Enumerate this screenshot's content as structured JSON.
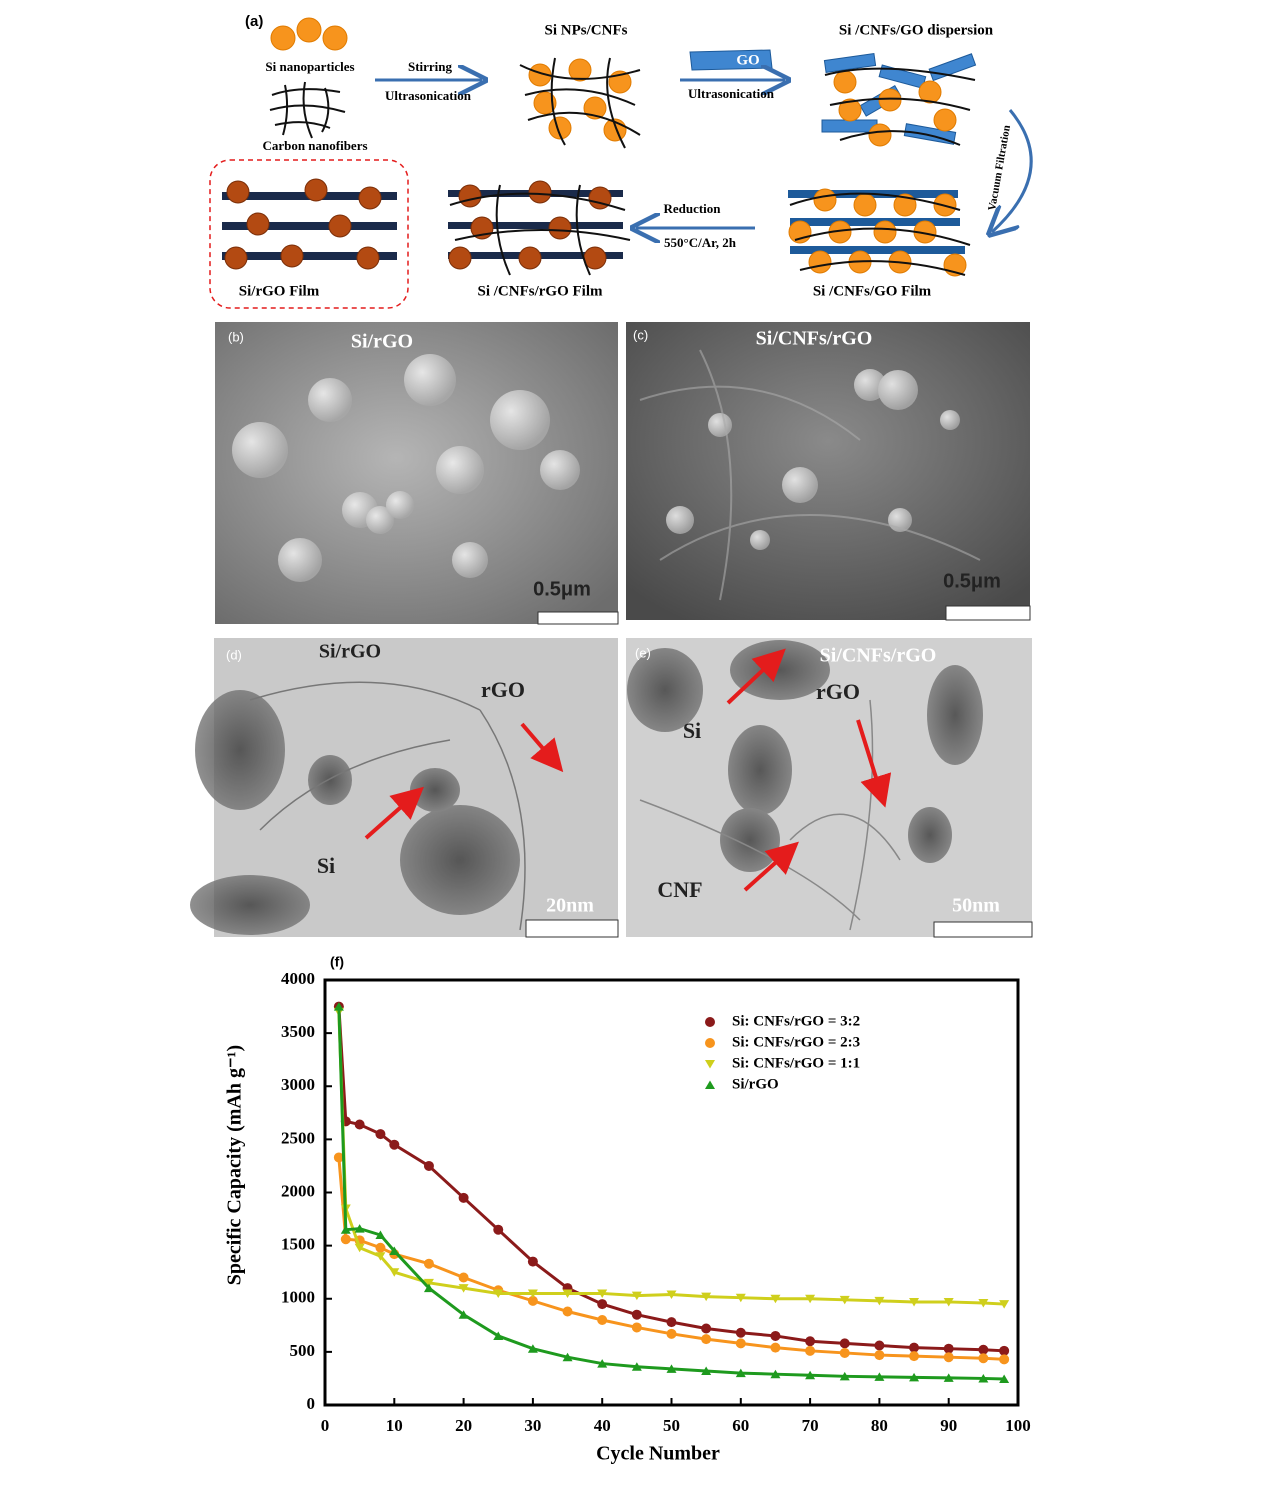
{
  "schematic": {
    "label": "(a)",
    "si_nanoparticles": "Si nanoparticles",
    "carbon_nanofibers": "Carbon nanofibers",
    "step1_top": "Stirring",
    "step1_bottom": "Ultrasonication",
    "si_nps_cnfs": "Si NPs/CNFs",
    "go": "GO",
    "step2_bottom": "Ultrasonication",
    "dispersion": "Si /CNFs/GO dispersion",
    "vacuum": "Vacuum Filtration",
    "go_film": "Si /CNFs/GO Film",
    "reduction": "Reduction",
    "reduction_cond": "550°C/Ar, 2h",
    "rgo_film": "Si /CNFs/rGO Film",
    "si_rgo_film": "Si/rGO Film"
  },
  "sem": [
    {
      "label": "(b)",
      "title": "Si/rGO",
      "scale": "0.5μm"
    },
    {
      "label": "(c)",
      "title": "Si/CNFs/rGO",
      "scale": "0.5μm"
    }
  ],
  "tem": [
    {
      "label": "(d)",
      "title": "Si/rGO",
      "scale": "20nm",
      "annotations": [
        "rGO",
        "Si"
      ]
    },
    {
      "label": "(e)",
      "title": "Si/CNFs/rGO",
      "scale": "50nm",
      "annotations": [
        "Si",
        "rGO",
        "CNF"
      ]
    }
  ],
  "chart_data": {
    "type": "line",
    "panel_label": "(f)",
    "x_label": "Cycle Number",
    "y_label": "Specific Capacity (mAh g⁻¹)",
    "x": [
      2,
      3,
      5,
      8,
      10,
      15,
      20,
      25,
      30,
      35,
      40,
      45,
      50,
      55,
      60,
      65,
      70,
      75,
      80,
      85,
      90,
      95,
      98
    ],
    "series": [
      {
        "name": "Si: CNFs/rGO = 3:2",
        "color": "#8b1a1a",
        "marker": "circle",
        "values": [
          3750,
          2670,
          2640,
          2550,
          2450,
          2250,
          1950,
          1650,
          1350,
          1100,
          950,
          850,
          780,
          720,
          680,
          650,
          600,
          580,
          560,
          540,
          530,
          520,
          510
        ]
      },
      {
        "name": "Si: CNFs/rGO = 2:3",
        "color": "#f7941d",
        "marker": "circle",
        "values": [
          2330,
          1560,
          1550,
          1480,
          1420,
          1330,
          1200,
          1080,
          980,
          880,
          800,
          730,
          670,
          620,
          580,
          540,
          510,
          490,
          470,
          460,
          450,
          440,
          430
        ]
      },
      {
        "name": "Si: CNFs/rGO = 1:1",
        "color": "#cfcf1c",
        "marker": "triangle-down",
        "values": [
          3700,
          1850,
          1480,
          1400,
          1250,
          1150,
          1100,
          1050,
          1050,
          1050,
          1050,
          1030,
          1040,
          1020,
          1010,
          1000,
          1000,
          990,
          980,
          970,
          970,
          960,
          950
        ]
      },
      {
        "name": "Si/rGO",
        "color": "#1e9a1e",
        "marker": "triangle-up",
        "values": [
          3750,
          1650,
          1660,
          1600,
          1450,
          1100,
          850,
          650,
          530,
          450,
          390,
          360,
          340,
          320,
          300,
          290,
          280,
          270,
          265,
          260,
          255,
          250,
          245
        ]
      }
    ],
    "xlim": [
      0,
      100
    ],
    "xticks": [
      0,
      10,
      20,
      30,
      40,
      50,
      60,
      70,
      80,
      90,
      100
    ],
    "ylim": [
      0,
      4000
    ],
    "yticks": [
      0,
      500,
      1000,
      1500,
      2000,
      2500,
      3000,
      3500,
      4000
    ],
    "legend": "upper-right"
  }
}
